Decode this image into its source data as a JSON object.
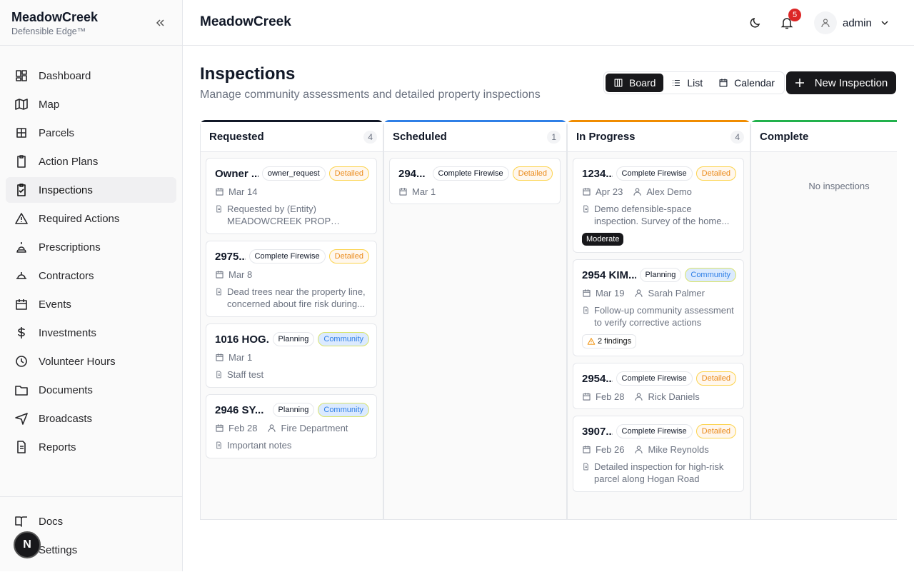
{
  "sidebar": {
    "brand": {
      "name": "MeadowCreek",
      "tagline": "Defensible Edge™"
    },
    "nav": [
      {
        "label": "Dashboard"
      },
      {
        "label": "Map"
      },
      {
        "label": "Parcels"
      },
      {
        "label": "Action Plans"
      },
      {
        "label": "Inspections",
        "active": true
      },
      {
        "label": "Required Actions"
      },
      {
        "label": "Prescriptions"
      },
      {
        "label": "Contractors"
      },
      {
        "label": "Events"
      },
      {
        "label": "Investments"
      },
      {
        "label": "Volunteer Hours"
      },
      {
        "label": "Documents"
      },
      {
        "label": "Broadcasts"
      },
      {
        "label": "Reports"
      }
    ],
    "footer": [
      {
        "label": "Docs"
      },
      {
        "label": "Settings"
      }
    ],
    "avatar": "N"
  },
  "header": {
    "title": "MeadowCreek",
    "notifications": "5",
    "user": "admin"
  },
  "page": {
    "title": "Inspections",
    "subtitle": "Manage community assessments and detailed property inspections",
    "views": [
      {
        "label": "Board",
        "active": true
      },
      {
        "label": "List"
      },
      {
        "label": "Calendar"
      }
    ],
    "new_button": "New Inspection"
  },
  "board": {
    "columns": [
      {
        "name": "Requested",
        "count": "4",
        "color": "#111827",
        "cards": [
          {
            "title": "Owner ...",
            "tags": [
              {
                "label": "owner_request",
                "style": "plain"
              },
              {
                "label": "Detailed",
                "style": "detailed"
              }
            ],
            "date": "Mar 14",
            "note": "Requested by (Entity) MEADOWCREEK PROP OWNER'..."
          },
          {
            "title": "2975...",
            "tags": [
              {
                "label": "Complete Firewise",
                "style": "plain"
              },
              {
                "label": "Detailed",
                "style": "detailed"
              }
            ],
            "date": "Mar 8",
            "note": "Dead trees near the property line, concerned about fire risk during..."
          },
          {
            "title": "1016 HOG...",
            "tags": [
              {
                "label": "Planning",
                "style": "plain"
              },
              {
                "label": "Community",
                "style": "community"
              }
            ],
            "date": "Mar 1",
            "note": "Staff test"
          },
          {
            "title": "2946 SY...",
            "tags": [
              {
                "label": "Planning",
                "style": "plain"
              },
              {
                "label": "Community",
                "style": "community"
              }
            ],
            "date": "Feb 28",
            "person": "Fire Department",
            "note": "Important notes"
          }
        ]
      },
      {
        "name": "Scheduled",
        "count": "1",
        "color": "#2f7fe6",
        "cards": [
          {
            "title": "294...",
            "tags": [
              {
                "label": "Complete Firewise",
                "style": "plain"
              },
              {
                "label": "Detailed",
                "style": "detailed"
              }
            ],
            "date": "Mar 1"
          }
        ]
      },
      {
        "name": "In Progress",
        "count": "4",
        "color": "#f08c00",
        "cards": [
          {
            "title": "1234...",
            "tags": [
              {
                "label": "Complete Firewise",
                "style": "plain"
              },
              {
                "label": "Detailed",
                "style": "detailed"
              }
            ],
            "date": "Apr 23",
            "person": "Alex Demo",
            "note": "Demo defensible-space inspection. Survey of the home...",
            "badge": {
              "label": "Moderate",
              "style": "dark"
            }
          },
          {
            "title": "2954 KIM...",
            "tags": [
              {
                "label": "Planning",
                "style": "plain"
              },
              {
                "label": "Community",
                "style": "community"
              }
            ],
            "date": "Mar 19",
            "person": "Sarah Palmer",
            "note": "Follow-up community assessment to verify corrective actions",
            "badge": {
              "label": "2 findings",
              "style": "warning"
            }
          },
          {
            "title": "2954...",
            "tags": [
              {
                "label": "Complete Firewise",
                "style": "plain"
              },
              {
                "label": "Detailed",
                "style": "detailed"
              }
            ],
            "date": "Feb 28",
            "person": "Rick Daniels"
          },
          {
            "title": "3907...",
            "tags": [
              {
                "label": "Complete Firewise",
                "style": "plain"
              },
              {
                "label": "Detailed",
                "style": "detailed"
              }
            ],
            "date": "Feb 26",
            "person": "Mike Reynolds",
            "note": "Detailed inspection for high-risk parcel along Hogan Road"
          }
        ]
      },
      {
        "name": "Complete",
        "color": "#22b14c",
        "cards": [],
        "empty": "No inspections"
      }
    ]
  }
}
